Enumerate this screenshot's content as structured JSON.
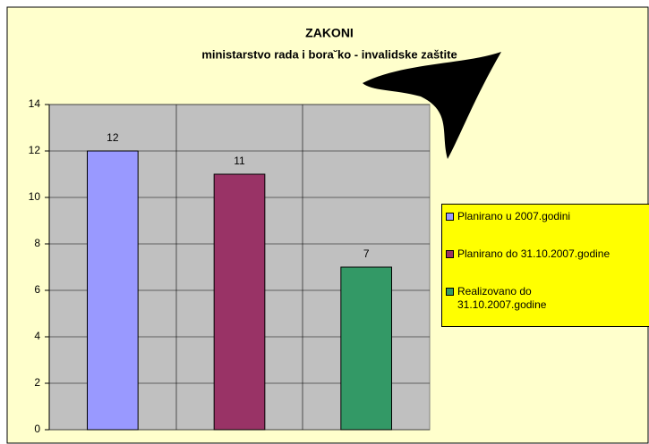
{
  "chart_data": {
    "type": "bar",
    "title": "ZAKONI",
    "subtitle": "ministarstvo rada i bora˘ko - invalidske zaštite",
    "series": [
      {
        "name": "Planirano u 2007.godini",
        "color": "#9999ff",
        "values": [
          12
        ]
      },
      {
        "name": "Planirano do 31.10.2007.godine",
        "color": "#993366",
        "values": [
          11
        ]
      },
      {
        "name": "Realizovano do 31.10.2007.godine",
        "color": "#339966",
        "values": [
          7
        ]
      }
    ],
    "ylim": [
      0,
      14
    ],
    "yticks": [
      0,
      2,
      4,
      6,
      8,
      10,
      12,
      14
    ],
    "grid": true,
    "legend": "right"
  }
}
